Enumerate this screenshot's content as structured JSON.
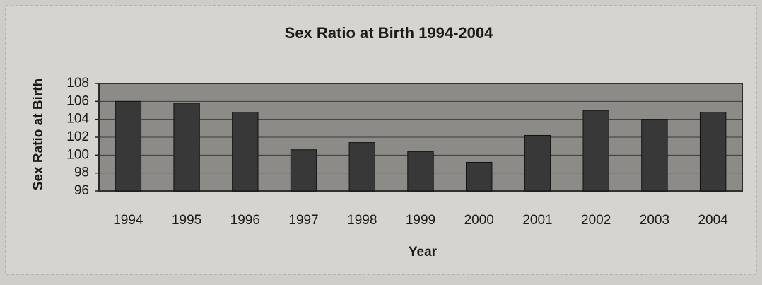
{
  "chart_data": {
    "type": "bar",
    "title": "Sex Ratio at Birth 1994-2004",
    "x_label": "Year",
    "y_label": "Sex Ratio at Birth",
    "categories": [
      "1994",
      "1995",
      "1996",
      "1997",
      "1998",
      "1999",
      "2000",
      "2001",
      "2002",
      "2003",
      "2004"
    ],
    "values": [
      106,
      105.8,
      104.8,
      100.6,
      101.4,
      100.4,
      99.2,
      102.2,
      105,
      104,
      104.8
    ],
    "color": "#383838",
    "ylim": [
      96,
      108
    ],
    "yticks": [
      96,
      98,
      100,
      102,
      104,
      106,
      108
    ],
    "grid": true
  }
}
